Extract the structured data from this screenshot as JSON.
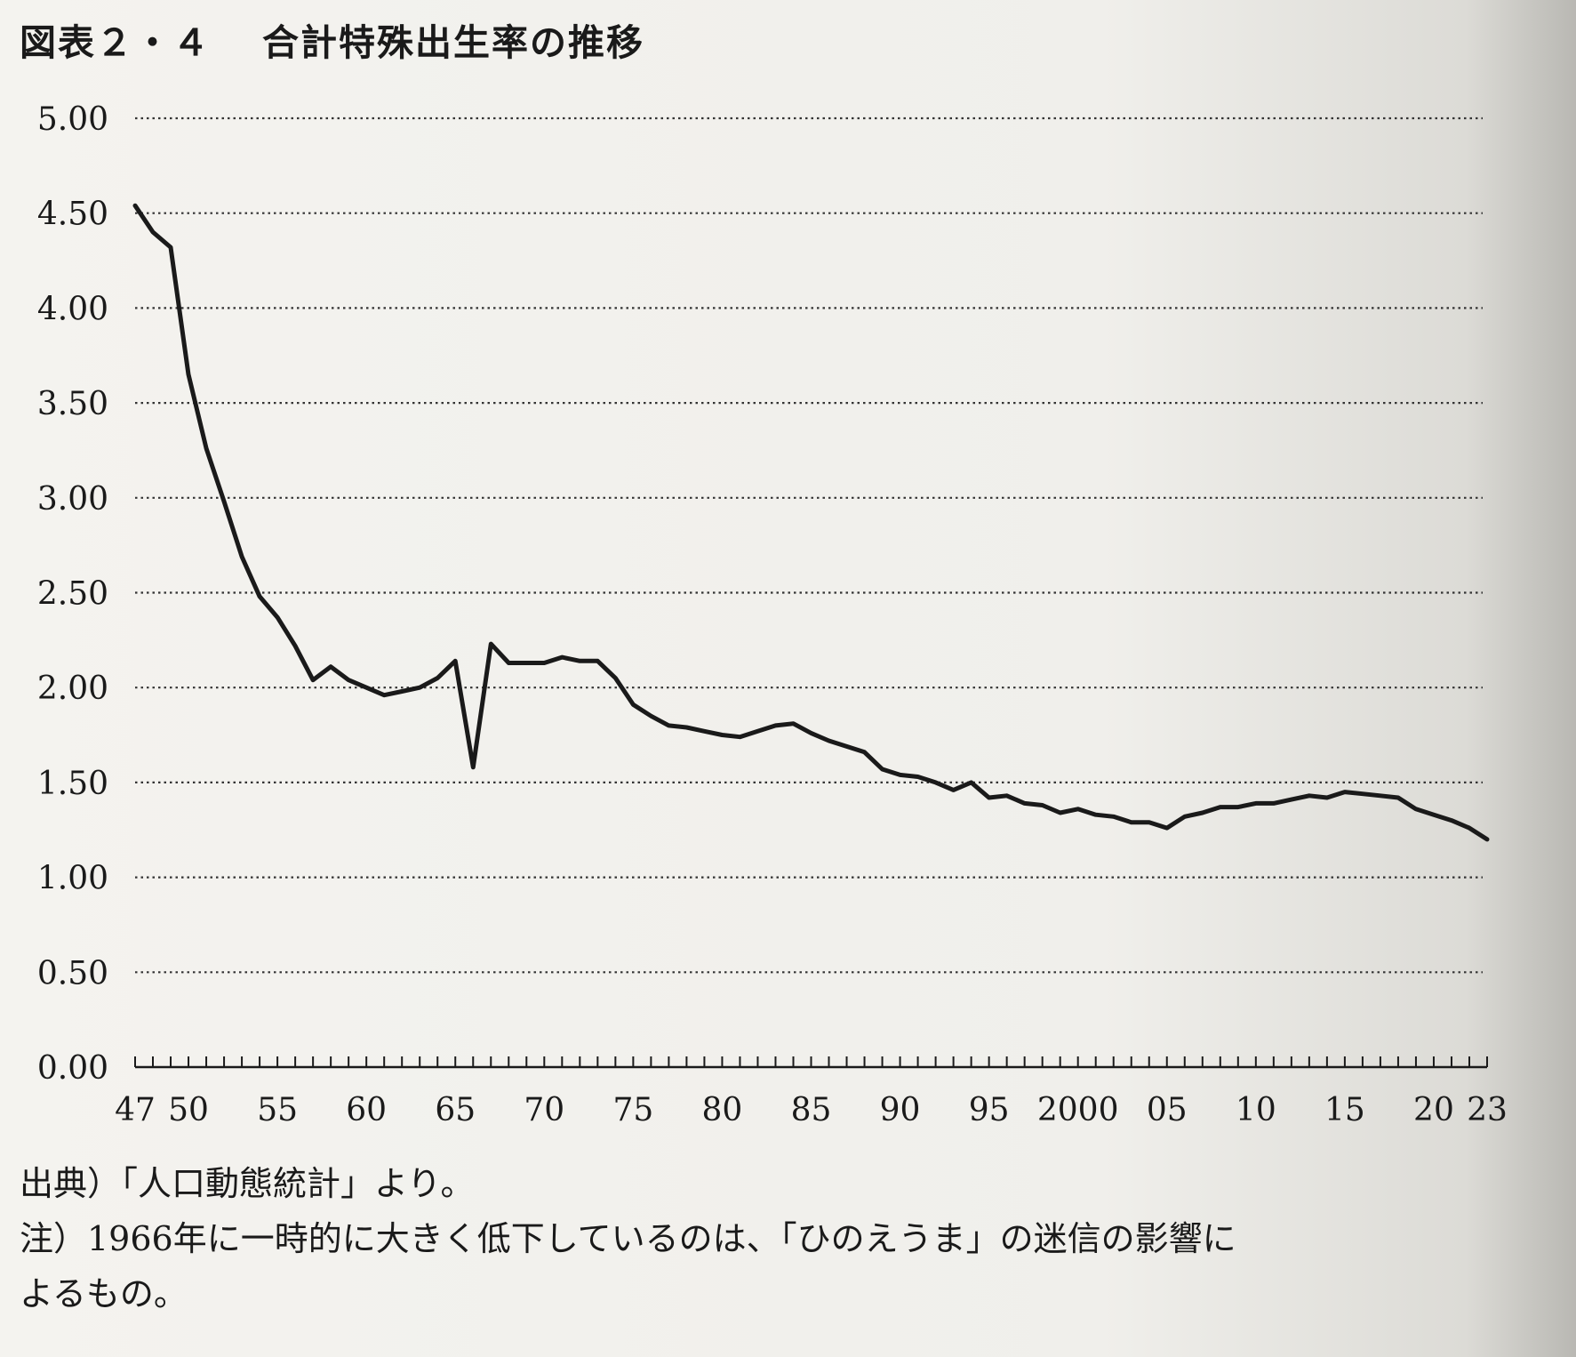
{
  "figure": {
    "number": "図表２・４",
    "title": "合計特殊出生率の推移"
  },
  "chart_data": {
    "type": "line",
    "title": "合計特殊出生率の推移",
    "xlabel": "",
    "ylabel": "",
    "ylim": [
      0,
      5
    ],
    "xlim": [
      1947,
      2023
    ],
    "grid": true,
    "legend": "none",
    "line_color": "#1a1a1a",
    "yticks": [
      "0.00",
      "0.50",
      "1.00",
      "1.50",
      "2.00",
      "2.50",
      "3.00",
      "3.50",
      "4.00",
      "4.50",
      "5.00"
    ],
    "xticks": [
      {
        "year": 1947,
        "label": "47"
      },
      {
        "year": 1950,
        "label": "50"
      },
      {
        "year": 1955,
        "label": "55"
      },
      {
        "year": 1960,
        "label": "60"
      },
      {
        "year": 1965,
        "label": "65"
      },
      {
        "year": 1970,
        "label": "70"
      },
      {
        "year": 1975,
        "label": "75"
      },
      {
        "year": 1980,
        "label": "80"
      },
      {
        "year": 1985,
        "label": "85"
      },
      {
        "year": 1990,
        "label": "90"
      },
      {
        "year": 1995,
        "label": "95"
      },
      {
        "year": 2000,
        "label": "2000"
      },
      {
        "year": 2005,
        "label": "05"
      },
      {
        "year": 2010,
        "label": "10"
      },
      {
        "year": 2015,
        "label": "15"
      },
      {
        "year": 2020,
        "label": "20"
      },
      {
        "year": 2023,
        "label": "23"
      }
    ],
    "x": [
      1947,
      1948,
      1949,
      1950,
      1951,
      1952,
      1953,
      1954,
      1955,
      1956,
      1957,
      1958,
      1959,
      1960,
      1961,
      1962,
      1963,
      1964,
      1965,
      1966,
      1967,
      1968,
      1969,
      1970,
      1971,
      1972,
      1973,
      1974,
      1975,
      1976,
      1977,
      1978,
      1979,
      1980,
      1981,
      1982,
      1983,
      1984,
      1985,
      1986,
      1987,
      1988,
      1989,
      1990,
      1991,
      1992,
      1993,
      1994,
      1995,
      1996,
      1997,
      1998,
      1999,
      2000,
      2001,
      2002,
      2003,
      2004,
      2005,
      2006,
      2007,
      2008,
      2009,
      2010,
      2011,
      2012,
      2013,
      2014,
      2015,
      2016,
      2017,
      2018,
      2019,
      2020,
      2021,
      2022,
      2023
    ],
    "values": [
      4.54,
      4.4,
      4.32,
      3.65,
      3.26,
      2.98,
      2.69,
      2.48,
      2.37,
      2.22,
      2.04,
      2.11,
      2.04,
      2.0,
      1.96,
      1.98,
      2.0,
      2.05,
      2.14,
      1.58,
      2.23,
      2.13,
      2.13,
      2.13,
      2.16,
      2.14,
      2.14,
      2.05,
      1.91,
      1.85,
      1.8,
      1.79,
      1.77,
      1.75,
      1.74,
      1.77,
      1.8,
      1.81,
      1.76,
      1.72,
      1.69,
      1.66,
      1.57,
      1.54,
      1.53,
      1.5,
      1.46,
      1.5,
      1.42,
      1.43,
      1.39,
      1.38,
      1.34,
      1.36,
      1.33,
      1.32,
      1.29,
      1.29,
      1.26,
      1.32,
      1.34,
      1.37,
      1.37,
      1.39,
      1.39,
      1.41,
      1.43,
      1.42,
      1.45,
      1.44,
      1.43,
      1.42,
      1.36,
      1.33,
      1.3,
      1.26,
      1.2
    ]
  },
  "notes": {
    "source": "出典）「人口動態統計」より。",
    "note_line1": "注）1966年に一時的に大きく低下しているのは、「ひのえうま」の迷信の影響に",
    "note_line2": "よるもの。"
  }
}
